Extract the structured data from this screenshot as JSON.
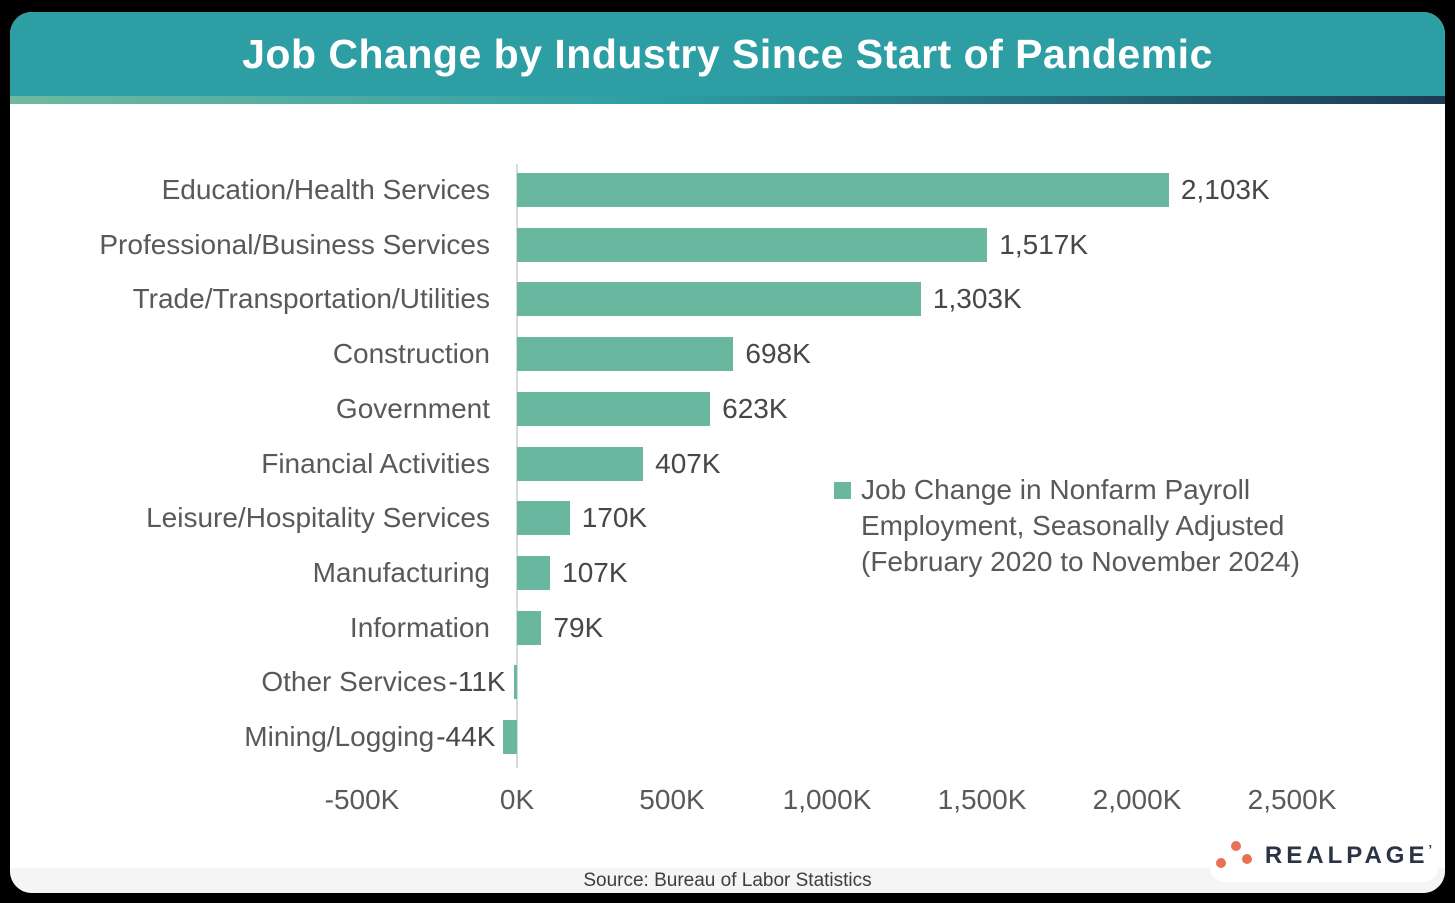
{
  "header": {
    "title": "Job Change by Industry Since Start of Pandemic"
  },
  "chart_data": {
    "type": "bar",
    "orientation": "horizontal",
    "title": "Job Change by Industry Since Start of Pandemic",
    "categories": [
      "Education/Health Services",
      "Professional/Business Services",
      "Trade/Transportation/Utilities",
      "Construction",
      "Government",
      "Financial Activities",
      "Leisure/Hospitality Services",
      "Manufacturing",
      "Information",
      "Other Services",
      "Mining/Logging"
    ],
    "values": [
      2103,
      1517,
      1303,
      698,
      623,
      407,
      170,
      107,
      79,
      -11,
      -44
    ],
    "value_labels": [
      "2,103K",
      "1,517K",
      "1,303K",
      "698K",
      "623K",
      "407K",
      "170K",
      "107K",
      "79K",
      "-11K",
      "-44K"
    ],
    "unit": "K (thousands of jobs)",
    "x_tick_labels": [
      "-500K",
      "0K",
      "500K",
      "1,000K",
      "1,500K",
      "2,000K",
      "2,500K"
    ],
    "x_tick_values": [
      -500,
      0,
      500,
      1000,
      1500,
      2000,
      2500
    ],
    "xlim": [
      -500,
      2500
    ],
    "grid": false,
    "legend": "Job Change in Nonfarm Payroll Employment, Seasonally Adjusted (February 2020 to November 2024)",
    "legend_position": "center-right",
    "bar_color": "#68b79e"
  },
  "footer": {
    "source": "Source: Bureau of Labor Statistics"
  },
  "logo": {
    "text": "REALPAGE",
    "tick": "’",
    "dot_color": "#e87054",
    "text_color": "#2b3445"
  },
  "colors": {
    "canvas_bg": "#000000",
    "header_bg": "#2d9ea4",
    "strip_gradient": [
      "#6fb9a0",
      "#2d9ea4",
      "#1d3a53"
    ],
    "axis_line": "#d9d9d9",
    "category_text": "#595959",
    "value_text": "#474747",
    "source_bg": "#f5f5f5"
  }
}
